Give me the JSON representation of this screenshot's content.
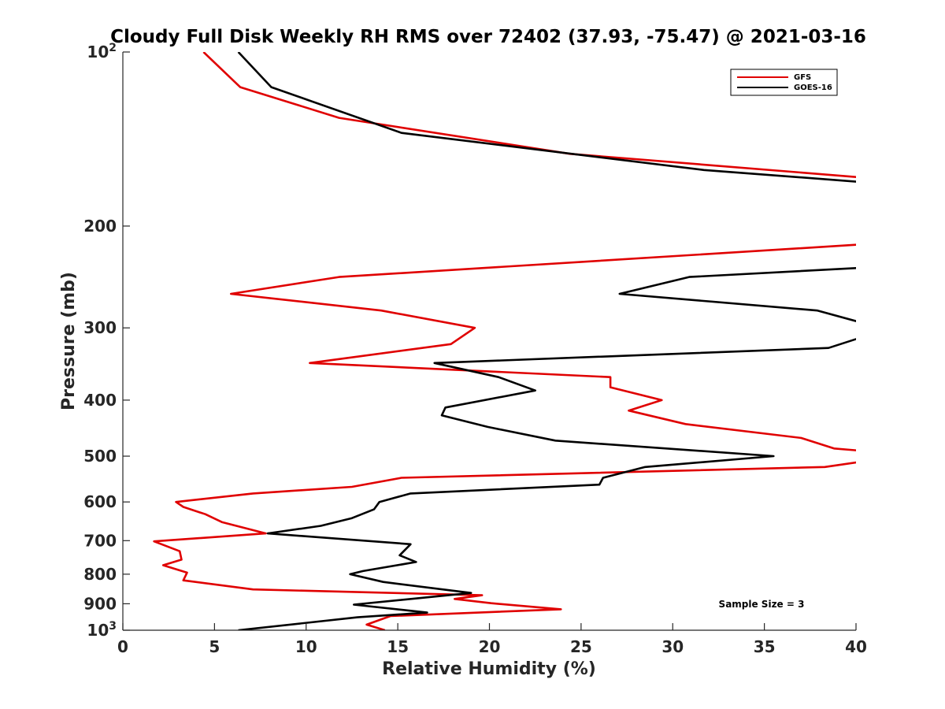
{
  "chart_data": {
    "type": "line",
    "title": "Cloudy Full Disk Weekly RH RMS over 72402 (37.93, -75.47) @ 2021-03-16",
    "xlabel": "Relative Humidity (%)",
    "ylabel": "Pressure (mb)",
    "xlim": [
      0,
      40
    ],
    "ylim": [
      100,
      1000
    ],
    "y_scale": "log",
    "y_reversed": true,
    "x_ticks": [
      "0",
      "5",
      "10",
      "15",
      "20",
      "25",
      "30",
      "35",
      "40"
    ],
    "y_ticks": [
      {
        "value": 100,
        "label": "10",
        "sup": "2"
      },
      {
        "value": 200,
        "label": "200",
        "sup": ""
      },
      {
        "value": 300,
        "label": "300",
        "sup": ""
      },
      {
        "value": 400,
        "label": "400",
        "sup": ""
      },
      {
        "value": 500,
        "label": "500",
        "sup": ""
      },
      {
        "value": 600,
        "label": "600",
        "sup": ""
      },
      {
        "value": 700,
        "label": "700",
        "sup": ""
      },
      {
        "value": 800,
        "label": "800",
        "sup": ""
      },
      {
        "value": 900,
        "label": "900",
        "sup": ""
      },
      {
        "value": 1000,
        "label": "10",
        "sup": "3"
      }
    ],
    "grid": false,
    "legend_position": "top-right",
    "annotation": "Sample Size = 3",
    "series": [
      {
        "name": "GFS",
        "color": "#e00000",
        "points": [
          [
            4.4,
            100
          ],
          [
            6.4,
            115
          ],
          [
            11.8,
            130
          ],
          [
            24.4,
            150
          ],
          [
            40.5,
            165
          ],
          [
            40.5,
            215
          ],
          [
            11.8,
            245
          ],
          [
            5.9,
            262
          ],
          [
            14.1,
            280
          ],
          [
            19.2,
            300
          ],
          [
            17.9,
            320
          ],
          [
            10.2,
            345
          ],
          [
            26.6,
            365
          ],
          [
            26.6,
            380
          ],
          [
            29.4,
            400
          ],
          [
            27.6,
            417
          ],
          [
            30.7,
            440
          ],
          [
            37.0,
            465
          ],
          [
            38.8,
            485
          ],
          [
            40.5,
            490
          ],
          [
            40.5,
            510
          ],
          [
            38.3,
            522
          ],
          [
            15.2,
            545
          ],
          [
            12.5,
            565
          ],
          [
            7.1,
            580
          ],
          [
            2.9,
            600
          ],
          [
            3.3,
            612
          ],
          [
            4.5,
            630
          ],
          [
            5.4,
            650
          ],
          [
            7.8,
            680
          ],
          [
            1.7,
            702
          ],
          [
            3.1,
            730
          ],
          [
            3.2,
            755
          ],
          [
            2.2,
            772
          ],
          [
            3.5,
            795
          ],
          [
            3.3,
            820
          ],
          [
            7.1,
            850
          ],
          [
            19.6,
            870
          ],
          [
            18.1,
            883
          ],
          [
            20.1,
            898
          ],
          [
            23.9,
            920
          ],
          [
            14.6,
            945
          ],
          [
            13.3,
            978
          ],
          [
            14.3,
            1000
          ]
        ]
      },
      {
        "name": "GOES-16",
        "color": "#000000",
        "points": [
          [
            6.3,
            100
          ],
          [
            8.1,
            115
          ],
          [
            15.2,
            138
          ],
          [
            31.7,
            160
          ],
          [
            40.5,
            168
          ],
          [
            40.5,
            236
          ],
          [
            30.9,
            245
          ],
          [
            27.1,
            262
          ],
          [
            37.9,
            280
          ],
          [
            40.5,
            295
          ],
          [
            40.5,
            310
          ],
          [
            38.5,
            325
          ],
          [
            17.0,
            345
          ],
          [
            20.5,
            365
          ],
          [
            22.5,
            385
          ],
          [
            17.6,
            412
          ],
          [
            17.4,
            425
          ],
          [
            19.9,
            445
          ],
          [
            23.6,
            470
          ],
          [
            35.5,
            500
          ],
          [
            28.5,
            522
          ],
          [
            26.2,
            545
          ],
          [
            26.0,
            560
          ],
          [
            15.7,
            580
          ],
          [
            14.0,
            600
          ],
          [
            13.7,
            618
          ],
          [
            12.5,
            640
          ],
          [
            10.8,
            660
          ],
          [
            7.9,
            680
          ],
          [
            15.7,
            710
          ],
          [
            15.1,
            742
          ],
          [
            16.0,
            762
          ],
          [
            13.1,
            790
          ],
          [
            12.4,
            800
          ],
          [
            14.2,
            825
          ],
          [
            19.0,
            862
          ],
          [
            12.6,
            903
          ],
          [
            16.6,
            932
          ],
          [
            12.8,
            950
          ],
          [
            6.3,
            1000
          ]
        ]
      }
    ]
  }
}
